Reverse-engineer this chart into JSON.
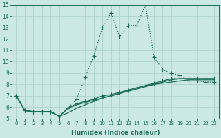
{
  "xlabel": "Humidex (Indice chaleur)",
  "xlim_min": -0.5,
  "xlim_max": 23.5,
  "ylim_min": 5,
  "ylim_max": 15,
  "yticks": [
    5,
    6,
    7,
    8,
    9,
    10,
    11,
    12,
    13,
    14,
    15
  ],
  "xticks": [
    0,
    1,
    2,
    3,
    4,
    5,
    6,
    7,
    8,
    9,
    10,
    11,
    12,
    13,
    14,
    15,
    16,
    17,
    18,
    19,
    20,
    21,
    22,
    23
  ],
  "bg_color": "#cce8e5",
  "line_color": "#1a6b5a",
  "grid_color": "#a8cece",
  "series": [
    {
      "y": [
        7.0,
        5.7,
        5.6,
        5.6,
        5.6,
        5.2,
        5.9,
        6.7,
        8.6,
        10.5,
        13.0,
        14.3,
        12.2,
        13.2,
        13.2,
        15.0,
        10.4,
        9.3,
        9.0,
        8.8,
        8.3,
        8.3,
        8.2,
        8.2
      ],
      "linestyle": ":",
      "marker": "+",
      "markersize": 4,
      "linewidth": 0.9
    },
    {
      "y": [
        7.0,
        5.7,
        5.6,
        5.6,
        5.6,
        5.2,
        5.9,
        6.3,
        6.5,
        6.7,
        7.0,
        7.1,
        7.3,
        7.5,
        7.7,
        7.9,
        8.1,
        8.3,
        8.5,
        8.5,
        8.5,
        8.5,
        8.5,
        8.5
      ],
      "linestyle": "-",
      "marker": "+",
      "markersize": 4,
      "linewidth": 0.9
    },
    {
      "y": [
        7.0,
        5.7,
        5.6,
        5.6,
        5.6,
        5.2,
        5.9,
        6.2,
        6.4,
        6.6,
        6.8,
        7.0,
        7.2,
        7.4,
        7.6,
        7.8,
        8.0,
        8.2,
        8.4,
        8.5,
        8.5,
        8.5,
        8.5,
        8.5
      ],
      "linestyle": "-",
      "marker": null,
      "markersize": 0,
      "linewidth": 0.9
    },
    {
      "y": [
        7.0,
        5.7,
        5.6,
        5.6,
        5.6,
        5.2,
        5.5,
        5.9,
        6.2,
        6.5,
        6.8,
        7.0,
        7.2,
        7.5,
        7.7,
        7.9,
        8.0,
        8.1,
        8.2,
        8.3,
        8.4,
        8.4,
        8.4,
        8.4
      ],
      "linestyle": "-",
      "marker": null,
      "markersize": 0,
      "linewidth": 0.9
    }
  ]
}
